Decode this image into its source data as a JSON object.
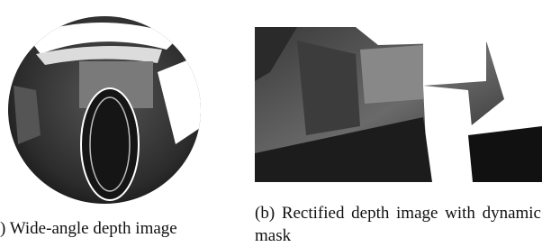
{
  "figure": {
    "panels": [
      {
        "caption": ") Wide-angle depth image"
      },
      {
        "caption": "(b) Rectified depth image with dynamic mask"
      }
    ]
  }
}
